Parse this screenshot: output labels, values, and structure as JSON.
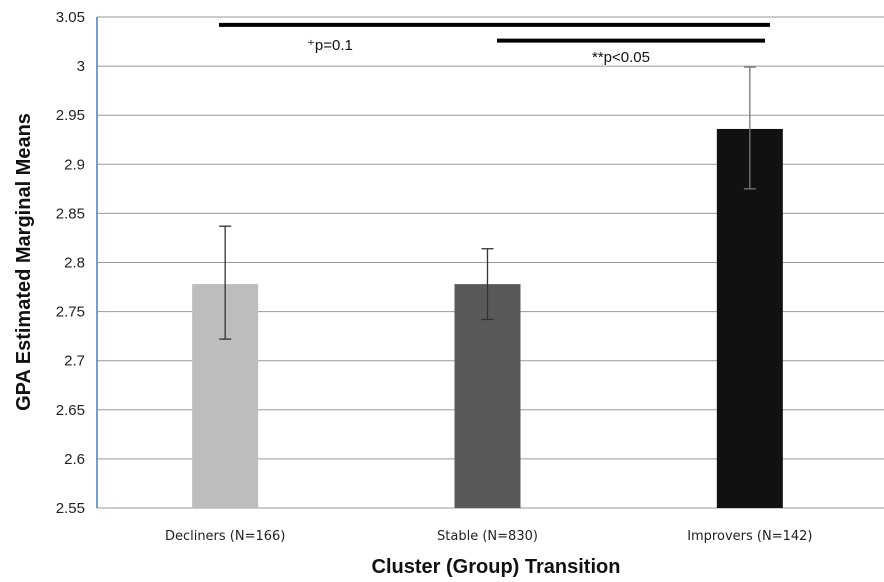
{
  "chart_data": {
    "type": "bar",
    "categories": [
      "Decliners (N=166)",
      "Stable (N=830)",
      "Improvers (N=142)"
    ],
    "values": [
      2.778,
      2.778,
      2.936
    ],
    "error_low": [
      2.722,
      2.742,
      2.875
    ],
    "error_high": [
      2.837,
      2.814,
      2.999
    ],
    "colors": [
      "#bdbdbd",
      "#595959",
      "#111111"
    ],
    "ylim": [
      2.55,
      3.05
    ],
    "yticks": [
      "2.55",
      "2.6",
      "2.65",
      "2.7",
      "2.75",
      "2.8",
      "2.85",
      "2.9",
      "2.95",
      "3",
      "3.05"
    ],
    "xlabel": "Cluster (Group) Transition",
    "ylabel": "GPA Estimated Marginal Means",
    "grid": true,
    "annotations": [
      {
        "label": "⁺p=0.1",
        "from": 0,
        "to": 2,
        "y": 3.042
      },
      {
        "label": "**p<0.05",
        "from": 1,
        "to": 2,
        "y": 3.026
      }
    ]
  }
}
